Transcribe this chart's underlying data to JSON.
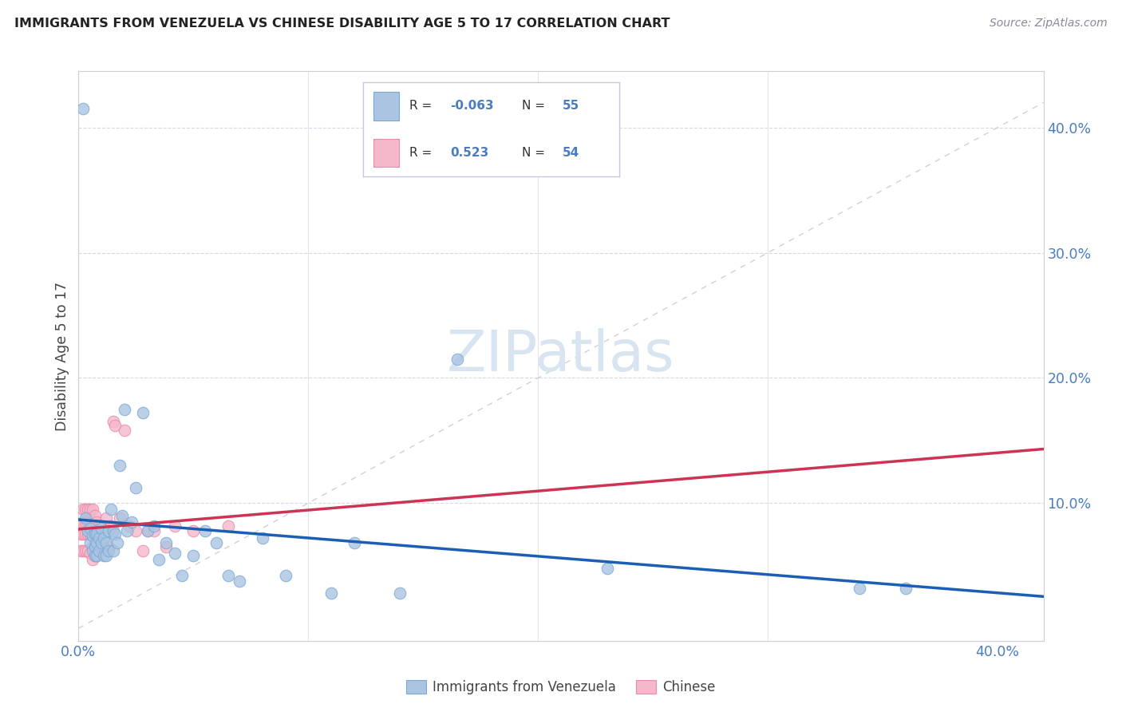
{
  "title": "IMMIGRANTS FROM VENEZUELA VS CHINESE DISABILITY AGE 5 TO 17 CORRELATION CHART",
  "source": "Source: ZipAtlas.com",
  "ylabel": "Disability Age 5 to 17",
  "xlim": [
    0.0,
    0.42
  ],
  "ylim": [
    -0.01,
    0.445
  ],
  "y_ticks": [
    0.1,
    0.2,
    0.3,
    0.4
  ],
  "x_ticks": [
    0.0,
    0.1,
    0.2,
    0.3,
    0.4
  ],
  "venezuela_color": "#aac4e2",
  "venezuela_edge": "#7aaad4",
  "chinese_color": "#f5b8ca",
  "chinese_edge": "#e88aaa",
  "line1_color": "#1a5fb4",
  "line2_color": "#cc3355",
  "diagonal_color": "#d0d0d8",
  "background_color": "#ffffff",
  "grid_color": "#d8d8e4",
  "title_color": "#222222",
  "axis_color": "#4a7cc0",
  "watermark_color": "#d8e4f0",
  "venezuela_x": [
    0.002,
    0.003,
    0.004,
    0.005,
    0.005,
    0.006,
    0.006,
    0.007,
    0.007,
    0.007,
    0.008,
    0.008,
    0.008,
    0.009,
    0.009,
    0.01,
    0.01,
    0.011,
    0.011,
    0.012,
    0.012,
    0.013,
    0.013,
    0.014,
    0.015,
    0.015,
    0.016,
    0.017,
    0.018,
    0.019,
    0.02,
    0.021,
    0.023,
    0.025,
    0.028,
    0.03,
    0.033,
    0.035,
    0.038,
    0.042,
    0.045,
    0.05,
    0.055,
    0.06,
    0.065,
    0.07,
    0.08,
    0.09,
    0.11,
    0.12,
    0.14,
    0.165,
    0.23,
    0.34,
    0.36
  ],
  "venezuela_y": [
    0.415,
    0.088,
    0.078,
    0.08,
    0.068,
    0.074,
    0.062,
    0.075,
    0.065,
    0.058,
    0.075,
    0.068,
    0.058,
    0.072,
    0.062,
    0.08,
    0.068,
    0.058,
    0.072,
    0.068,
    0.058,
    0.078,
    0.062,
    0.095,
    0.078,
    0.062,
    0.075,
    0.068,
    0.13,
    0.09,
    0.175,
    0.078,
    0.085,
    0.112,
    0.172,
    0.078,
    0.082,
    0.055,
    0.068,
    0.06,
    0.042,
    0.058,
    0.078,
    0.068,
    0.042,
    0.038,
    0.072,
    0.042,
    0.028,
    0.068,
    0.028,
    0.215,
    0.048,
    0.032,
    0.032
  ],
  "chinese_x": [
    0.001,
    0.001,
    0.001,
    0.002,
    0.002,
    0.002,
    0.002,
    0.003,
    0.003,
    0.003,
    0.003,
    0.004,
    0.004,
    0.004,
    0.004,
    0.005,
    0.005,
    0.005,
    0.005,
    0.006,
    0.006,
    0.006,
    0.006,
    0.006,
    0.007,
    0.007,
    0.007,
    0.007,
    0.008,
    0.008,
    0.008,
    0.009,
    0.009,
    0.009,
    0.01,
    0.01,
    0.011,
    0.011,
    0.012,
    0.013,
    0.014,
    0.015,
    0.016,
    0.018,
    0.02,
    0.022,
    0.025,
    0.028,
    0.03,
    0.033,
    0.038,
    0.042,
    0.05,
    0.065
  ],
  "chinese_y": [
    0.082,
    0.075,
    0.062,
    0.095,
    0.085,
    0.075,
    0.062,
    0.095,
    0.085,
    0.075,
    0.062,
    0.095,
    0.085,
    0.075,
    0.062,
    0.095,
    0.085,
    0.075,
    0.06,
    0.095,
    0.085,
    0.075,
    0.065,
    0.055,
    0.09,
    0.078,
    0.068,
    0.058,
    0.085,
    0.075,
    0.058,
    0.082,
    0.072,
    0.062,
    0.082,
    0.065,
    0.082,
    0.065,
    0.088,
    0.065,
    0.082,
    0.165,
    0.162,
    0.088,
    0.158,
    0.082,
    0.078,
    0.062,
    0.078,
    0.078,
    0.065,
    0.082,
    0.078,
    0.082
  ]
}
